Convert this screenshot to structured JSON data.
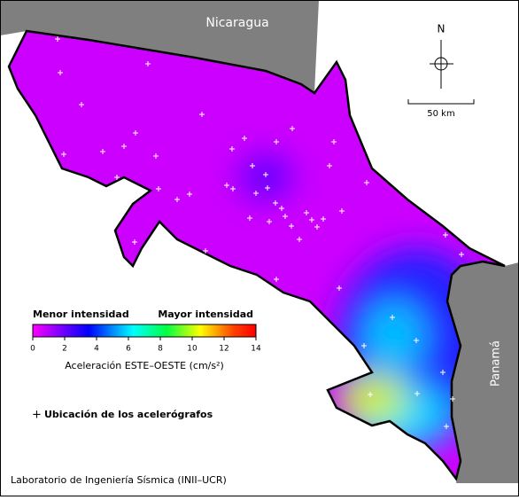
{
  "map": {
    "labels": {
      "north": "N",
      "country_north": "Nicaragua",
      "country_south": "Panamá",
      "scale": "50 km"
    },
    "colorbar": {
      "low_label": "Menor intensidad",
      "high_label": "Mayor intensidad",
      "lim": [
        0,
        14
      ],
      "ticks": [
        0,
        2,
        4,
        6,
        8,
        10,
        12,
        14
      ],
      "title": "Aceleración ESTE–OESTE (cm/s²)"
    },
    "legend": "Ubicación de los acelerógrafos",
    "credit": "Laboratorio de Ingeniería Sísmica (INII–UCR)"
  }
}
